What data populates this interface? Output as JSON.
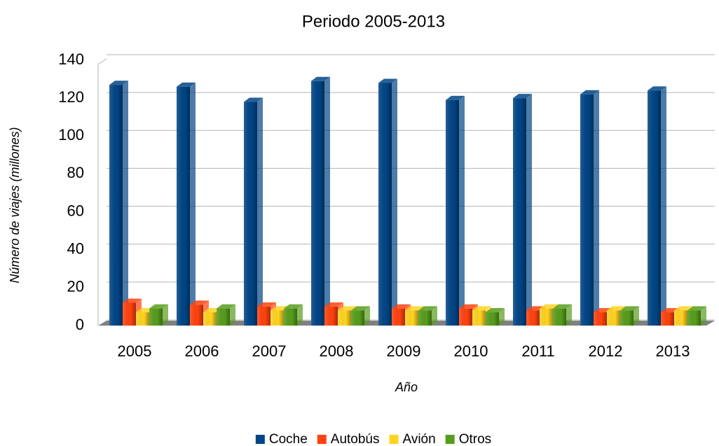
{
  "chart_data": {
    "type": "bar3d",
    "title": "Periodo 2005-2013",
    "x_label": "Año",
    "y_label": "Número de viajes (millones)",
    "categories": [
      "2005",
      "2006",
      "2007",
      "2008",
      "2009",
      "2010",
      "2011",
      "2012",
      "2013"
    ],
    "series": [
      {
        "name": "Coche",
        "color": "#004586",
        "values": [
          127,
          126,
          118,
          129,
          128,
          119,
          120,
          122,
          124
        ]
      },
      {
        "name": "Autobús",
        "color": "#ff420e",
        "values": [
          12,
          11,
          10,
          10,
          9,
          9,
          8,
          7,
          7
        ]
      },
      {
        "name": "Avión",
        "color": "#ffd320",
        "values": [
          7,
          7,
          8,
          8,
          8,
          8,
          9,
          8,
          8
        ]
      },
      {
        "name": "Otros",
        "color": "#579d1c",
        "values": [
          9,
          9,
          9,
          8,
          8,
          7,
          9,
          8,
          8
        ]
      }
    ],
    "ylim": [
      0,
      140
    ],
    "yticks": [
      0,
      20,
      40,
      60,
      80,
      100,
      120,
      140
    ],
    "grid": true,
    "legend": "bottom"
  }
}
